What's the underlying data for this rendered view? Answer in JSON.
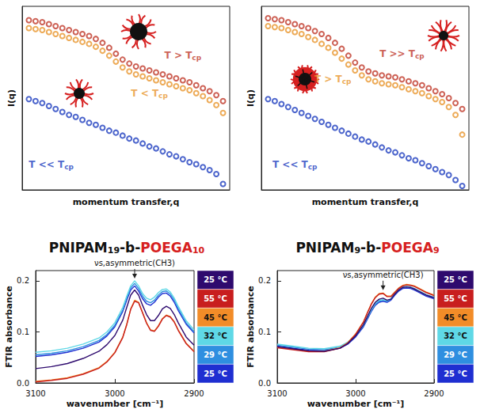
{
  "chart_data": [
    {
      "type": "scatter",
      "marker": "open circle",
      "x_label": "momentum transfer,q",
      "y_label": "I(q)",
      "tick_labels": false,
      "grid": false,
      "xlim": [
        0,
        9.3
      ],
      "ylim": [
        0,
        9.3
      ],
      "x": [
        0.3,
        0.6,
        0.9,
        1.2,
        1.5,
        1.8,
        2.1,
        2.4,
        2.7,
        3.0,
        3.3,
        3.6,
        3.9,
        4.2,
        4.5,
        4.8,
        5.1,
        5.4,
        5.7,
        6.0,
        6.3,
        6.6,
        6.9,
        7.2,
        7.5,
        7.8,
        8.1,
        8.4,
        8.7,
        9.0
      ],
      "series": [
        {
          "name": "T > Tcp",
          "color": "#c0392b",
          "label_at": [
            7.2,
            6.8
          ],
          "values": [
            8.6,
            8.55,
            8.5,
            8.4,
            8.3,
            8.2,
            8.1,
            8.0,
            7.9,
            7.8,
            7.65,
            7.45,
            7.2,
            6.9,
            6.6,
            6.4,
            6.25,
            6.15,
            6.05,
            5.95,
            5.85,
            5.75,
            5.65,
            5.55,
            5.45,
            5.3,
            5.15,
            5.0,
            4.8,
            4.5
          ]
        },
        {
          "name": "T < Tcp",
          "color": "#e8962e",
          "label_at": [
            5.7,
            4.9
          ],
          "values": [
            8.2,
            8.15,
            8.1,
            8.0,
            7.9,
            7.8,
            7.7,
            7.6,
            7.5,
            7.4,
            7.25,
            7.05,
            6.8,
            6.5,
            6.2,
            6.0,
            5.85,
            5.75,
            5.65,
            5.55,
            5.45,
            5.35,
            5.25,
            5.15,
            5.05,
            4.9,
            4.75,
            4.55,
            4.3,
            3.9
          ]
        },
        {
          "name": "T << Tcp",
          "color": "#1f3fbf",
          "label_at": [
            1.3,
            1.3
          ],
          "values": [
            4.6,
            4.5,
            4.4,
            4.25,
            4.1,
            3.95,
            3.8,
            3.7,
            3.55,
            3.4,
            3.3,
            3.15,
            3.0,
            2.9,
            2.75,
            2.6,
            2.5,
            2.35,
            2.2,
            2.1,
            1.95,
            1.8,
            1.7,
            1.55,
            1.4,
            1.3,
            1.15,
            1.0,
            0.8,
            0.3
          ]
        }
      ]
    },
    {
      "type": "scatter",
      "marker": "open circle",
      "x_label": "momentum transfer,q",
      "y_label": "I(q)",
      "tick_labels": false,
      "grid": false,
      "xlim": [
        0,
        9.3
      ],
      "ylim": [
        0,
        9.3
      ],
      "x": [
        0.3,
        0.6,
        0.9,
        1.2,
        1.5,
        1.8,
        2.1,
        2.4,
        2.7,
        3.0,
        3.3,
        3.6,
        3.9,
        4.2,
        4.5,
        4.8,
        5.1,
        5.4,
        5.7,
        6.0,
        6.3,
        6.6,
        6.9,
        7.2,
        7.5,
        7.8,
        8.1,
        8.4,
        8.7,
        9.0
      ],
      "series": [
        {
          "name": "T >> Tcp",
          "color": "#c0392b",
          "label_at": [
            6.3,
            6.9
          ],
          "values": [
            8.7,
            8.65,
            8.6,
            8.5,
            8.4,
            8.3,
            8.2,
            8.05,
            7.9,
            7.7,
            7.45,
            7.15,
            6.8,
            6.45,
            6.2,
            6.0,
            5.9,
            5.8,
            5.75,
            5.7,
            5.6,
            5.5,
            5.4,
            5.3,
            5.15,
            5.0,
            4.85,
            4.65,
            4.4,
            4.1
          ]
        },
        {
          "name": "T > Tcp",
          "color": "#e8962e",
          "label_at": [
            3.2,
            5.6
          ],
          "values": [
            8.3,
            8.25,
            8.2,
            8.1,
            8.0,
            7.9,
            7.75,
            7.6,
            7.4,
            7.2,
            6.95,
            6.65,
            6.35,
            6.05,
            5.8,
            5.6,
            5.5,
            5.4,
            5.35,
            5.3,
            5.2,
            5.1,
            5.0,
            4.9,
            4.75,
            4.6,
            4.45,
            4.2,
            3.8,
            2.8
          ]
        },
        {
          "name": "T << Tcp",
          "color": "#1f3fbf",
          "label_at": [
            1.5,
            1.3
          ],
          "values": [
            4.6,
            4.5,
            4.35,
            4.2,
            4.05,
            3.9,
            3.75,
            3.6,
            3.45,
            3.3,
            3.15,
            3.0,
            2.85,
            2.7,
            2.55,
            2.45,
            2.3,
            2.15,
            2.0,
            1.9,
            1.75,
            1.6,
            1.5,
            1.35,
            1.2,
            1.05,
            0.9,
            0.75,
            0.5,
            0.2
          ]
        }
      ]
    },
    {
      "type": "line",
      "title": "PNIPAM19-b-POEGA10",
      "x_label": "wavenumber [cm⁻¹]",
      "y_label": "FTIR absorbance",
      "grid": false,
      "legend": "right",
      "line_style": "solid",
      "xlim": [
        3100,
        2900
      ],
      "xticks": [
        3100,
        3000,
        2900
      ],
      "ylim": [
        0,
        0.22
      ],
      "yticks": [
        {
          "value": 0,
          "label": "0.0"
        },
        {
          "value": 0.1,
          "label": "0.1"
        },
        {
          "value": 0.2,
          "label": "0.2"
        }
      ],
      "annotations": [
        {
          "text": "νs,asymmetric(CH3)",
          "x": 2975,
          "y": 0.203
        }
      ],
      "x": [
        3100,
        3080,
        3060,
        3040,
        3020,
        3010,
        3000,
        2990,
        2985,
        2980,
        2975,
        2970,
        2965,
        2960,
        2955,
        2950,
        2945,
        2940,
        2935,
        2930,
        2925,
        2920,
        2910,
        2900
      ],
      "series": [
        {
          "name": "25 °C",
          "color": "#1f2fd1",
          "values": [
            0.052,
            0.055,
            0.06,
            0.068,
            0.08,
            0.092,
            0.11,
            0.14,
            0.162,
            0.182,
            0.19,
            0.18,
            0.165,
            0.155,
            0.152,
            0.158,
            0.168,
            0.175,
            0.176,
            0.17,
            0.158,
            0.142,
            0.115,
            0.098
          ]
        },
        {
          "name": "29 °C",
          "color": "#2f8fe0",
          "values": [
            0.055,
            0.058,
            0.063,
            0.071,
            0.083,
            0.095,
            0.113,
            0.143,
            0.166,
            0.186,
            0.195,
            0.185,
            0.17,
            0.16,
            0.157,
            0.162,
            0.172,
            0.179,
            0.18,
            0.174,
            0.162,
            0.146,
            0.118,
            0.1
          ]
        },
        {
          "name": "32 °C",
          "color": "#5fd8e6",
          "values": [
            0.06,
            0.063,
            0.068,
            0.076,
            0.088,
            0.1,
            0.118,
            0.148,
            0.17,
            0.19,
            0.2,
            0.19,
            0.175,
            0.166,
            0.163,
            0.168,
            0.177,
            0.183,
            0.184,
            0.178,
            0.166,
            0.15,
            0.122,
            0.104
          ]
        },
        {
          "name": "45 °C",
          "color": "#f28c28",
          "values": [
            0.003,
            0.006,
            0.01,
            0.018,
            0.03,
            0.042,
            0.06,
            0.09,
            0.115,
            0.145,
            0.162,
            0.158,
            0.138,
            0.118,
            0.104,
            0.102,
            0.112,
            0.126,
            0.133,
            0.13,
            0.12,
            0.104,
            0.078,
            0.062
          ]
        },
        {
          "name": "55 °C",
          "color": "#c81e1e",
          "values": [
            0.002,
            0.005,
            0.009,
            0.017,
            0.029,
            0.041,
            0.059,
            0.089,
            0.114,
            0.144,
            0.16,
            0.157,
            0.137,
            0.117,
            0.103,
            0.101,
            0.111,
            0.125,
            0.132,
            0.129,
            0.119,
            0.103,
            0.077,
            0.061
          ]
        },
        {
          "name": "25 °C",
          "color": "#2e0a6e",
          "values": [
            0.028,
            0.032,
            0.038,
            0.048,
            0.062,
            0.075,
            0.093,
            0.123,
            0.148,
            0.172,
            0.182,
            0.172,
            0.152,
            0.134,
            0.122,
            0.122,
            0.132,
            0.145,
            0.15,
            0.146,
            0.134,
            0.118,
            0.09,
            0.074
          ]
        }
      ]
    },
    {
      "type": "line",
      "title": "PNIPAM9-b-POEGA9",
      "x_label": "wavenumber [cm⁻¹]",
      "y_label": "FTIR absorbance",
      "grid": false,
      "legend": "right",
      "line_style": "solid",
      "xlim": [
        3100,
        2900
      ],
      "xticks": [
        3100,
        3000,
        2900
      ],
      "ylim": [
        0,
        0.22
      ],
      "yticks": [
        {
          "value": 0,
          "label": "0.0"
        },
        {
          "value": 0.1,
          "label": "0.1"
        },
        {
          "value": 0.2,
          "label": "0.2"
        }
      ],
      "annotations": [
        {
          "text": "νs,asymmetric(CH3)",
          "x": 2965,
          "y": 0.18
        }
      ],
      "x": [
        3100,
        3080,
        3060,
        3040,
        3020,
        3010,
        3000,
        2990,
        2985,
        2980,
        2975,
        2970,
        2965,
        2960,
        2955,
        2950,
        2945,
        2940,
        2935,
        2930,
        2925,
        2920,
        2910,
        2900
      ],
      "series": [
        {
          "name": "25 °C",
          "color": "#1f2fd1",
          "values": [
            0.072,
            0.068,
            0.064,
            0.063,
            0.068,
            0.076,
            0.09,
            0.11,
            0.125,
            0.14,
            0.152,
            0.158,
            0.16,
            0.158,
            0.162,
            0.172,
            0.18,
            0.185,
            0.186,
            0.185,
            0.182,
            0.178,
            0.17,
            0.165
          ]
        },
        {
          "name": "29 °C",
          "color": "#2f8fe0",
          "values": [
            0.074,
            0.07,
            0.066,
            0.065,
            0.07,
            0.078,
            0.092,
            0.112,
            0.127,
            0.142,
            0.154,
            0.16,
            0.162,
            0.16,
            0.164,
            0.174,
            0.182,
            0.187,
            0.188,
            0.187,
            0.184,
            0.18,
            0.172,
            0.167
          ]
        },
        {
          "name": "32 °C",
          "color": "#5fd8e6",
          "values": [
            0.076,
            0.072,
            0.068,
            0.067,
            0.072,
            0.08,
            0.094,
            0.114,
            0.129,
            0.144,
            0.156,
            0.162,
            0.163,
            0.161,
            0.165,
            0.175,
            0.183,
            0.188,
            0.189,
            0.188,
            0.185,
            0.181,
            0.173,
            0.168
          ]
        },
        {
          "name": "45 °C",
          "color": "#f28c28",
          "values": [
            0.07,
            0.066,
            0.062,
            0.062,
            0.069,
            0.079,
            0.096,
            0.12,
            0.138,
            0.155,
            0.168,
            0.175,
            0.176,
            0.17,
            0.17,
            0.178,
            0.186,
            0.191,
            0.193,
            0.192,
            0.19,
            0.186,
            0.178,
            0.172
          ]
        },
        {
          "name": "55 °C",
          "color": "#c81e1e",
          "values": [
            0.069,
            0.065,
            0.061,
            0.061,
            0.068,
            0.078,
            0.095,
            0.119,
            0.137,
            0.154,
            0.167,
            0.174,
            0.175,
            0.169,
            0.169,
            0.177,
            0.185,
            0.19,
            0.192,
            0.191,
            0.189,
            0.185,
            0.177,
            0.171
          ]
        },
        {
          "name": "25 °C",
          "color": "#2e0a6e",
          "values": [
            0.071,
            0.067,
            0.063,
            0.062,
            0.068,
            0.077,
            0.092,
            0.114,
            0.13,
            0.146,
            0.158,
            0.164,
            0.166,
            0.162,
            0.164,
            0.174,
            0.182,
            0.187,
            0.188,
            0.187,
            0.184,
            0.18,
            0.172,
            0.167
          ]
        }
      ]
    }
  ]
}
